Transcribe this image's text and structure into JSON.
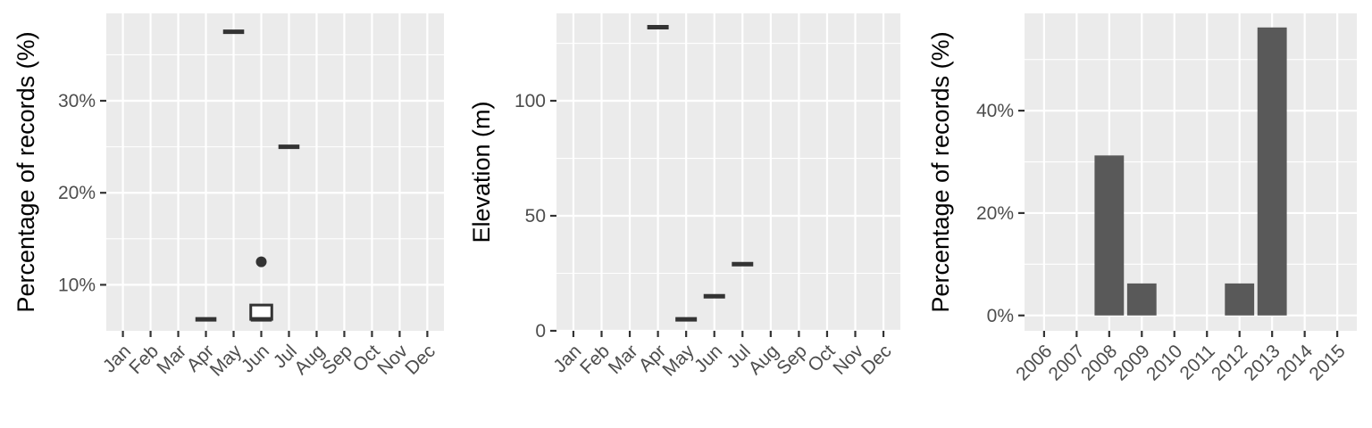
{
  "chart_data": [
    {
      "type": "boxplot",
      "ylabel": "Percentage of records (%)",
      "categories": [
        "Jan",
        "Feb",
        "Mar",
        "Apr",
        "May",
        "Jun",
        "Jul",
        "Aug",
        "Sep",
        "Oct",
        "Nov",
        "Dec"
      ],
      "ylim": [
        5,
        39.5
      ],
      "yticks": [
        10,
        20,
        30
      ],
      "ytick_labels": [
        "10%",
        "20%",
        "30%"
      ],
      "grid": true,
      "boxes": [
        {
          "category": "Apr",
          "q1": 6.25,
          "median": 6.25,
          "q3": 6.25,
          "outliers": []
        },
        {
          "category": "May",
          "q1": 37.5,
          "median": 37.5,
          "q3": 37.5,
          "outliers": []
        },
        {
          "category": "Jun",
          "q1": 6.25,
          "median": 6.25,
          "q3": 7.8,
          "outliers": [
            12.5
          ]
        },
        {
          "category": "Jul",
          "q1": 25,
          "median": 25,
          "q3": 25,
          "outliers": []
        }
      ]
    },
    {
      "type": "boxplot",
      "ylabel": "Elevation (m)",
      "categories": [
        "Jan",
        "Feb",
        "Mar",
        "Apr",
        "May",
        "Jun",
        "Jul",
        "Aug",
        "Sep",
        "Oct",
        "Nov",
        "Dec"
      ],
      "ylim": [
        0,
        138
      ],
      "yticks": [
        0,
        50,
        100
      ],
      "ytick_labels": [
        "0",
        "50",
        "100"
      ],
      "grid": true,
      "boxes": [
        {
          "category": "Apr",
          "q1": 132,
          "median": 132,
          "q3": 132,
          "outliers": []
        },
        {
          "category": "May",
          "q1": 5,
          "median": 5,
          "q3": 5,
          "outliers": []
        },
        {
          "category": "Jun",
          "q1": 15,
          "median": 15,
          "q3": 15,
          "outliers": []
        },
        {
          "category": "Jul",
          "q1": 29,
          "median": 29,
          "q3": 29,
          "outliers": []
        }
      ]
    },
    {
      "type": "bar",
      "ylabel": "Percentage of records (%)",
      "categories": [
        "2006",
        "2007",
        "2008",
        "2009",
        "2010",
        "2011",
        "2012",
        "2013",
        "2014",
        "2015"
      ],
      "values": [
        0,
        0,
        31.25,
        6.25,
        0,
        0,
        6.25,
        56.25,
        0,
        0
      ],
      "ylim": [
        -3,
        59
      ],
      "yticks": [
        0,
        20,
        40
      ],
      "ytick_labels": [
        "0%",
        "20%",
        "40%"
      ],
      "grid": true
    }
  ]
}
